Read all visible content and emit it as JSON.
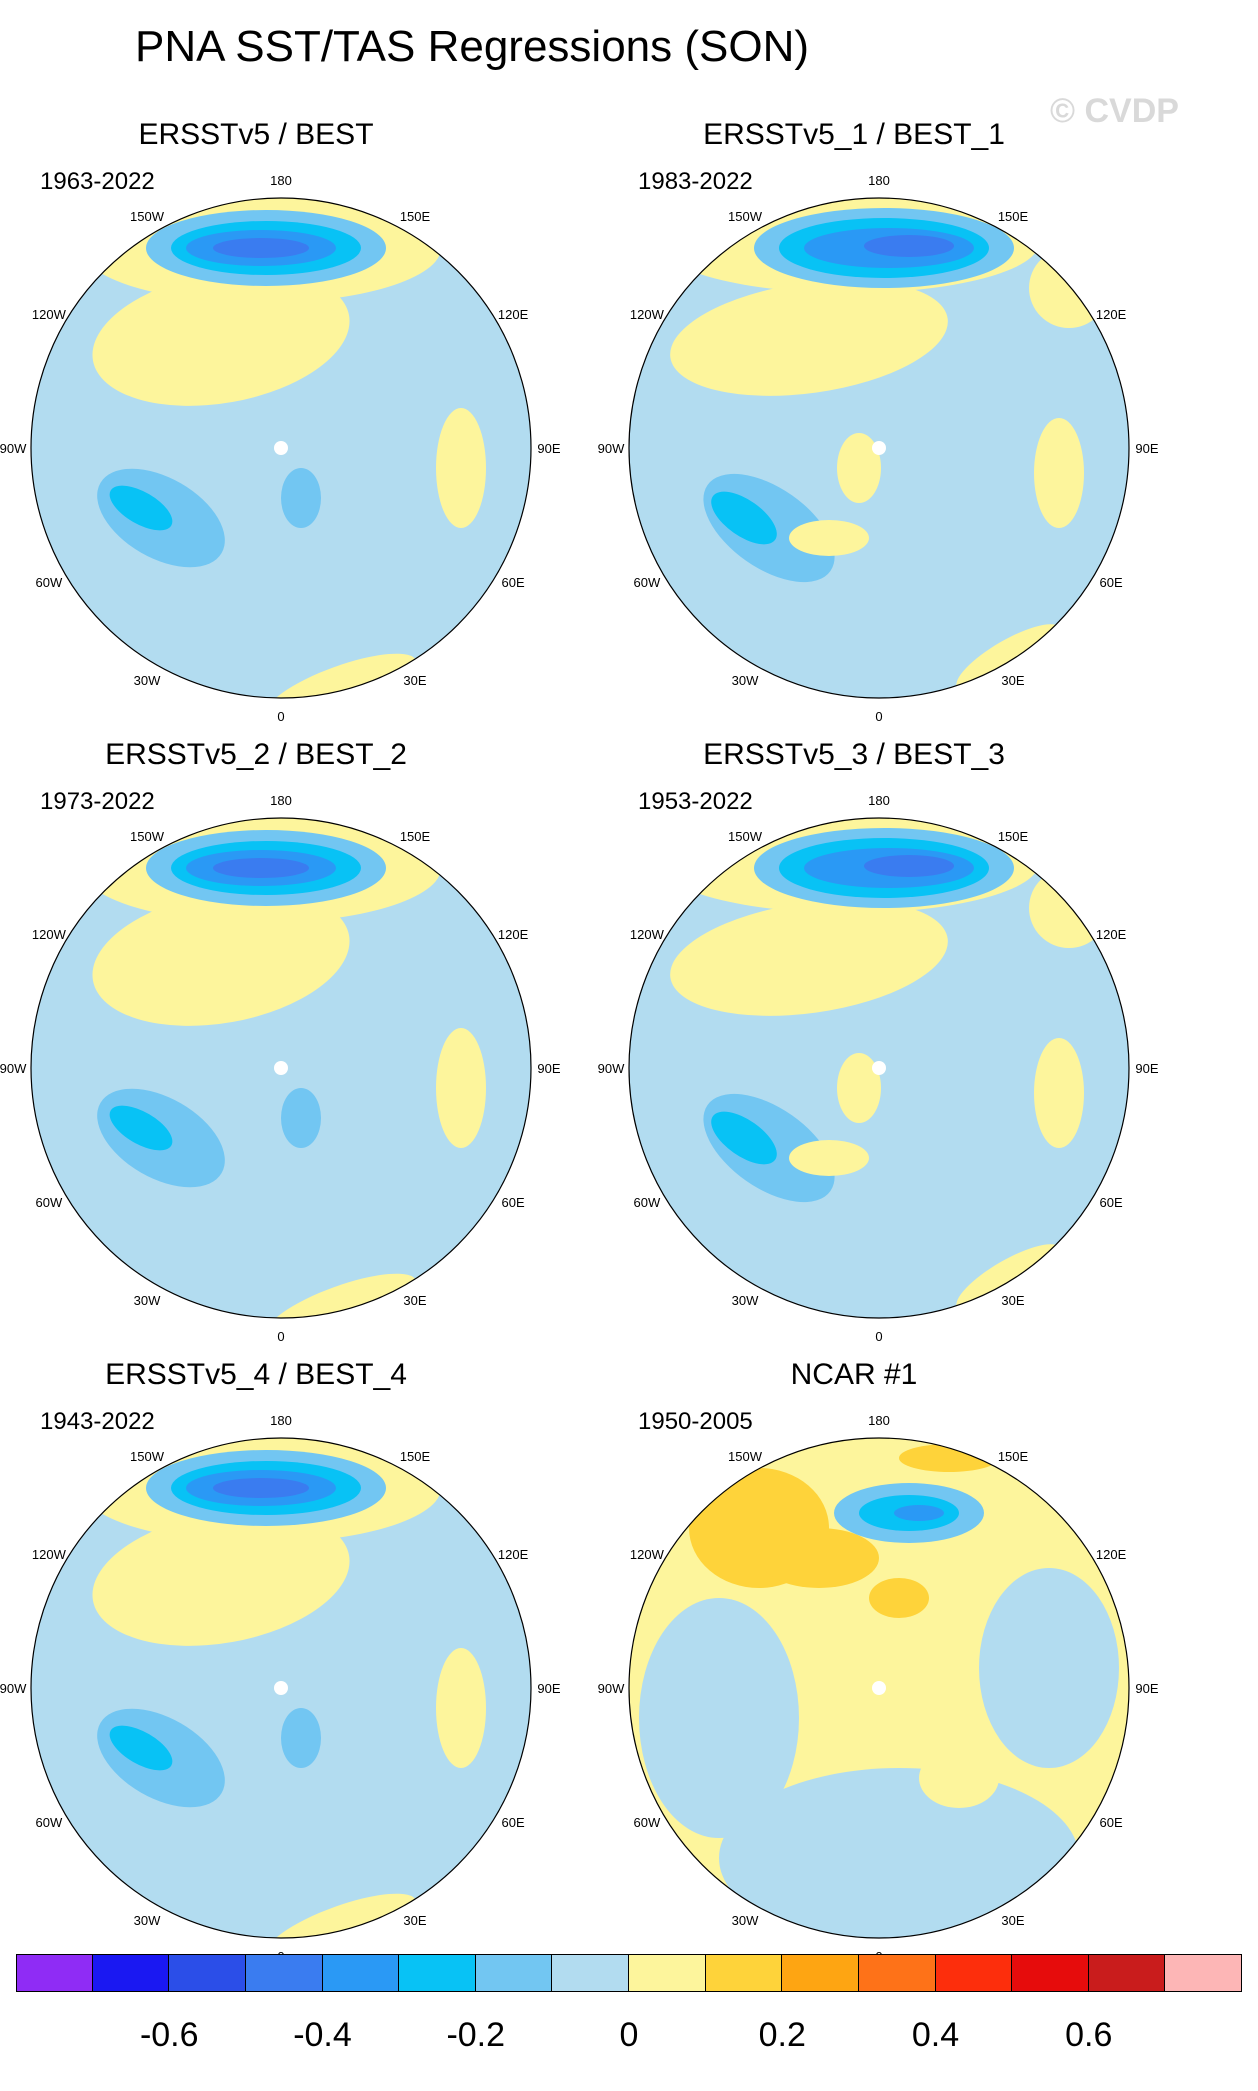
{
  "title": "PNA SST/TAS Regressions (SON)",
  "watermark": "© CVDP",
  "longitude_labels": [
    "180",
    "150E",
    "120E",
    "90E",
    "60E",
    "30E",
    "0",
    "30W",
    "60W",
    "90W",
    "120W",
    "150W"
  ],
  "panels": [
    {
      "title": "ERSSTv5 / BEST",
      "years": "1963-2022",
      "style": "A"
    },
    {
      "title": "ERSSTv5_1 / BEST_1",
      "years": "1983-2022",
      "style": "B"
    },
    {
      "title": "ERSSTv5_2 / BEST_2",
      "years": "1973-2022",
      "style": "A"
    },
    {
      "title": "ERSSTv5_3 / BEST_3",
      "years": "1953-2022",
      "style": "B"
    },
    {
      "title": "ERSSTv5_4 / BEST_4",
      "years": "1943-2022",
      "style": "A"
    },
    {
      "title": "NCAR #1",
      "years": "1950-2005",
      "style": "C"
    }
  ],
  "colorbar": {
    "colors": [
      "#8f2cf5",
      "#1a18f2",
      "#2b4ee8",
      "#3a7cf0",
      "#2a99f5",
      "#08c2f5",
      "#72c6f2",
      "#b2dcf0",
      "#fdf59c",
      "#fed33a",
      "#fea512",
      "#fe7218",
      "#fd2e0c",
      "#e60c0c",
      "#c91c1c",
      "#fdb6b6"
    ],
    "tick_labels": [
      "-0.6",
      "-0.4",
      "-0.2",
      "0",
      "0.2",
      "0.4",
      "0.6"
    ]
  }
}
